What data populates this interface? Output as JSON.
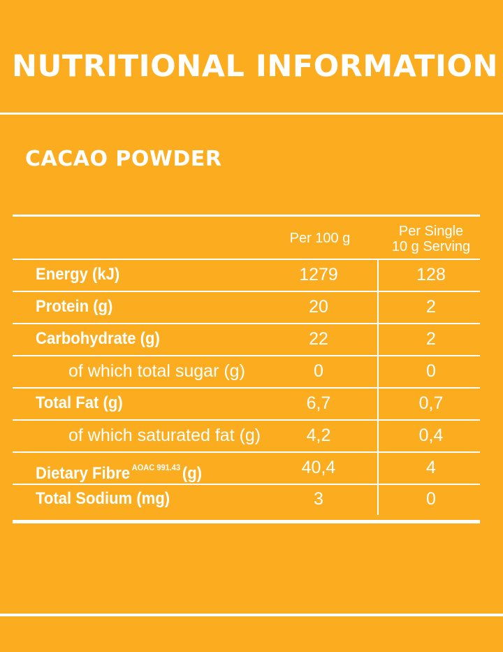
{
  "title": "NUTRITIONAL INFORMATION",
  "product": "CACAO POWDER",
  "columns": {
    "per_100g": "Per 100 g",
    "per_serving_line1": "Per Single",
    "per_serving_line2": "10 g Serving"
  },
  "rows": [
    {
      "label": "Energy (kJ)",
      "per_100g": "1279",
      "per_serving": "128"
    },
    {
      "label": "Protein (g)",
      "per_100g": "20",
      "per_serving": "2"
    },
    {
      "label": "Carbohydrate (g)",
      "per_100g": "22",
      "per_serving": "2"
    },
    {
      "label": "of which total sugar (g)",
      "per_100g": "0",
      "per_serving": "0"
    },
    {
      "label": "Total Fat (g)",
      "per_100g": "6,7",
      "per_serving": "0,7"
    },
    {
      "label": "of which saturated fat (g)",
      "per_100g": "4,2",
      "per_serving": "0,4"
    },
    {
      "label": "Dietary Fibre",
      "method": "AOAC 991.43",
      "unit": "(g)",
      "per_100g": "40,4",
      "per_serving": "4"
    },
    {
      "label": "Total Sodium (mg)",
      "per_100g": "3",
      "per_serving": "0"
    }
  ]
}
